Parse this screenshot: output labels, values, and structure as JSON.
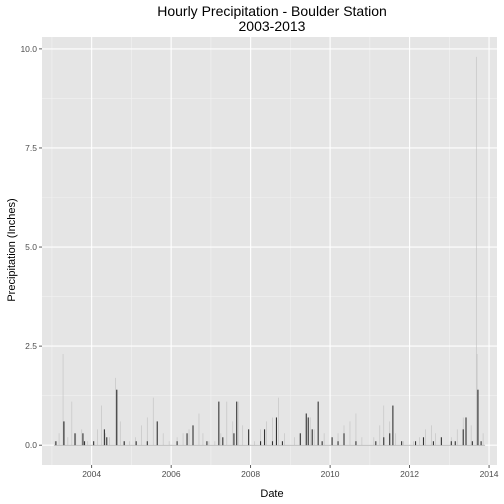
{
  "chart_data": {
    "type": "bar",
    "title": "Hourly Precipitation - Boulder Station",
    "subtitle": "2003-2013",
    "xlabel": "Date",
    "ylabel": "Precipitation (Inches)",
    "xlim": [
      2002.75,
      2014.2
    ],
    "ylim": [
      -0.5,
      10.3
    ],
    "x_ticks": [
      2004,
      2006,
      2008,
      2010,
      2012,
      2014
    ],
    "y_ticks": [
      0.0,
      2.5,
      5.0,
      7.5,
      10.0
    ],
    "x_tick_labels": [
      "2004",
      "2006",
      "2008",
      "2010",
      "2012",
      "2014"
    ],
    "y_tick_labels": [
      "0.0",
      "2.5",
      "5.0",
      "7.5",
      "10.0"
    ],
    "grid": true,
    "background": "#e5e5e5",
    "bar_color": "#333333",
    "faint_color": "#bdbdbd",
    "series": [
      {
        "values": [
          [
            2003.08,
            0.1
          ],
          [
            2003.18,
            0.3
          ],
          [
            2003.28,
            2.3
          ],
          [
            2003.32,
            0.6
          ],
          [
            2003.4,
            0.2
          ],
          [
            2003.5,
            1.1
          ],
          [
            2003.6,
            0.3
          ],
          [
            2003.75,
            0.4
          ],
          [
            2003.9,
            0.1
          ],
          [
            2004.05,
            0.1
          ],
          [
            2004.15,
            0.4
          ],
          [
            2004.25,
            1.0
          ],
          [
            2004.35,
            0.3
          ],
          [
            2004.45,
            0.2
          ],
          [
            2004.6,
            1.7
          ],
          [
            2004.65,
            1.4
          ],
          [
            2004.72,
            0.6
          ],
          [
            2004.8,
            0.1
          ],
          [
            2004.95,
            0.1
          ],
          [
            2005.1,
            0.2
          ],
          [
            2005.25,
            0.5
          ],
          [
            2005.4,
            0.7
          ],
          [
            2005.55,
            1.2
          ],
          [
            2005.65,
            0.6
          ],
          [
            2005.8,
            0.3
          ],
          [
            2005.95,
            0.1
          ],
          [
            2006.15,
            0.2
          ],
          [
            2006.3,
            0.3
          ],
          [
            2006.45,
            0.4
          ],
          [
            2006.55,
            0.5
          ],
          [
            2006.7,
            0.8
          ],
          [
            2006.8,
            0.3
          ],
          [
            2006.95,
            0.1
          ],
          [
            2007.1,
            0.1
          ],
          [
            2007.25,
            0.3
          ],
          [
            2007.4,
            1.1
          ],
          [
            2007.55,
            0.6
          ],
          [
            2007.7,
            1.1
          ],
          [
            2007.8,
            0.5
          ],
          [
            2007.95,
            0.1
          ],
          [
            2008.1,
            0.1
          ],
          [
            2008.25,
            0.4
          ],
          [
            2008.4,
            0.6
          ],
          [
            2008.55,
            0.7
          ],
          [
            2008.7,
            1.2
          ],
          [
            2008.85,
            0.3
          ],
          [
            2009.1,
            0.2
          ],
          [
            2009.25,
            0.3
          ],
          [
            2009.4,
            0.8
          ],
          [
            2009.5,
            0.7
          ],
          [
            2009.6,
            0.4
          ],
          [
            2009.7,
            1.1
          ],
          [
            2009.85,
            0.3
          ],
          [
            2010.05,
            0.2
          ],
          [
            2010.2,
            0.3
          ],
          [
            2010.35,
            0.5
          ],
          [
            2010.5,
            0.6
          ],
          [
            2010.65,
            0.8
          ],
          [
            2010.8,
            0.2
          ],
          [
            2011.1,
            0.2
          ],
          [
            2011.25,
            0.5
          ],
          [
            2011.35,
            1.0
          ],
          [
            2011.5,
            0.6
          ],
          [
            2011.65,
            0.3
          ],
          [
            2011.85,
            0.1
          ],
          [
            2012.1,
            0.1
          ],
          [
            2012.25,
            0.2
          ],
          [
            2012.4,
            0.4
          ],
          [
            2012.55,
            0.5
          ],
          [
            2012.65,
            0.3
          ],
          [
            2012.8,
            0.2
          ],
          [
            2013.05,
            0.2
          ],
          [
            2013.2,
            0.4
          ],
          [
            2013.35,
            0.7
          ],
          [
            2013.55,
            0.5
          ],
          [
            2013.68,
            9.8
          ],
          [
            2013.7,
            2.3
          ],
          [
            2013.73,
            1.4
          ],
          [
            2013.85,
            0.3
          ]
        ]
      }
    ],
    "dark_bars": [
      [
        2003.1,
        0.1
      ],
      [
        2003.3,
        0.6
      ],
      [
        2003.58,
        0.3
      ],
      [
        2003.78,
        0.3
      ],
      [
        2003.82,
        0.1
      ],
      [
        2004.05,
        0.1
      ],
      [
        2004.32,
        0.4
      ],
      [
        2004.38,
        0.2
      ],
      [
        2004.63,
        1.4
      ],
      [
        2004.82,
        0.1
      ],
      [
        2005.12,
        0.1
      ],
      [
        2005.4,
        0.1
      ],
      [
        2005.65,
        0.6
      ],
      [
        2006.15,
        0.1
      ],
      [
        2006.4,
        0.3
      ],
      [
        2006.55,
        0.5
      ],
      [
        2006.9,
        0.1
      ],
      [
        2007.2,
        1.1
      ],
      [
        2007.3,
        0.2
      ],
      [
        2007.58,
        0.3
      ],
      [
        2007.65,
        1.1
      ],
      [
        2007.95,
        0.4
      ],
      [
        2008.25,
        0.1
      ],
      [
        2008.35,
        0.4
      ],
      [
        2008.55,
        0.1
      ],
      [
        2008.65,
        0.7
      ],
      [
        2008.8,
        0.1
      ],
      [
        2009.25,
        0.3
      ],
      [
        2009.4,
        0.8
      ],
      [
        2009.45,
        0.7
      ],
      [
        2009.55,
        0.4
      ],
      [
        2009.7,
        1.1
      ],
      [
        2009.8,
        0.1
      ],
      [
        2010.05,
        0.2
      ],
      [
        2010.2,
        0.1
      ],
      [
        2010.35,
        0.3
      ],
      [
        2010.65,
        0.1
      ],
      [
        2011.15,
        0.1
      ],
      [
        2011.35,
        0.2
      ],
      [
        2011.5,
        0.3
      ],
      [
        2011.58,
        1.0
      ],
      [
        2011.8,
        0.1
      ],
      [
        2012.15,
        0.1
      ],
      [
        2012.35,
        0.2
      ],
      [
        2012.6,
        0.1
      ],
      [
        2012.8,
        0.2
      ],
      [
        2013.05,
        0.1
      ],
      [
        2013.15,
        0.1
      ],
      [
        2013.35,
        0.4
      ],
      [
        2013.42,
        0.7
      ],
      [
        2013.58,
        0.1
      ],
      [
        2013.72,
        1.4
      ],
      [
        2013.8,
        0.1
      ]
    ]
  }
}
